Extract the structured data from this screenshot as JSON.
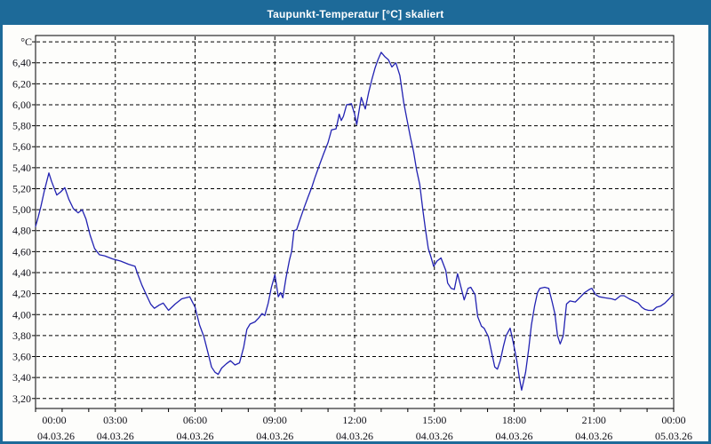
{
  "window": {
    "title": "Taupunkt-Temperatur [°C] skaliert",
    "title_bar_color": "#1d6a99",
    "border_color": "#1d6a99",
    "content_background": "#fdfdfb"
  },
  "chart_data": {
    "type": "line",
    "title": "Taupunkt-Temperatur [°C] skaliert",
    "y_unit_label": "°C",
    "grid": "dashed",
    "plot_background": "#fdfdfb",
    "line_color": "#2222b2",
    "grid_color": "#000000",
    "axis_color": "#000000",
    "xlim_hours": [
      0,
      24
    ],
    "ylim": [
      3.105,
      6.66
    ],
    "y_gridline_values": [
      3.2,
      3.4,
      3.6,
      3.8,
      4.0,
      4.2,
      4.4,
      4.6,
      4.8,
      5.0,
      5.2,
      5.4,
      5.6,
      5.8,
      6.0,
      6.2,
      6.4,
      6.6
    ],
    "y_ticks": [
      {
        "v": 6.4,
        "label": "6,40"
      },
      {
        "v": 6.2,
        "label": "6,20"
      },
      {
        "v": 6.0,
        "label": "6,00"
      },
      {
        "v": 5.8,
        "label": "5,80"
      },
      {
        "v": 5.6,
        "label": "5,60"
      },
      {
        "v": 5.4,
        "label": "5,40"
      },
      {
        "v": 5.2,
        "label": "5,20"
      },
      {
        "v": 5.0,
        "label": "5,00"
      },
      {
        "v": 4.8,
        "label": "4,80"
      },
      {
        "v": 4.6,
        "label": "4,60"
      },
      {
        "v": 4.4,
        "label": "4,40"
      },
      {
        "v": 4.2,
        "label": "4,20"
      },
      {
        "v": 4.0,
        "label": "4,00"
      },
      {
        "v": 3.8,
        "label": "3,80"
      },
      {
        "v": 3.6,
        "label": "3,60"
      },
      {
        "v": 3.4,
        "label": "3,40"
      },
      {
        "v": 3.2,
        "label": "3,20"
      }
    ],
    "x_major_ticks": [
      {
        "h": 0,
        "time": "00:00",
        "date": "04.03.26"
      },
      {
        "h": 3,
        "time": "03:00",
        "date": "04.03.26"
      },
      {
        "h": 6,
        "time": "06:00",
        "date": "04.03.26"
      },
      {
        "h": 9,
        "time": "09:00",
        "date": "04.03.26"
      },
      {
        "h": 12,
        "time": "12:00",
        "date": "04.03.26"
      },
      {
        "h": 15,
        "time": "15:00",
        "date": "04.03.26"
      },
      {
        "h": 18,
        "time": "18:00",
        "date": "04.03.26"
      },
      {
        "h": 21,
        "time": "21:00",
        "date": "04.03.26"
      },
      {
        "h": 24,
        "time": "00:00",
        "date": "05.03.26"
      }
    ],
    "x_minor_tick_step_hours": 1,
    "x_gridline_hours": [
      3,
      6,
      9,
      12,
      15,
      18,
      21
    ],
    "series": [
      {
        "name": "Taupunkt-Temperatur",
        "points": [
          [
            0.0,
            4.84
          ],
          [
            0.1,
            4.93
          ],
          [
            0.2,
            5.03
          ],
          [
            0.33,
            5.18
          ],
          [
            0.5,
            5.35
          ],
          [
            0.6,
            5.27
          ],
          [
            0.8,
            5.14
          ],
          [
            0.95,
            5.17
          ],
          [
            1.1,
            5.21
          ],
          [
            1.25,
            5.1
          ],
          [
            1.42,
            5.01
          ],
          [
            1.6,
            4.97
          ],
          [
            1.75,
            5.0
          ],
          [
            1.9,
            4.91
          ],
          [
            2.05,
            4.76
          ],
          [
            2.22,
            4.63
          ],
          [
            2.4,
            4.57
          ],
          [
            2.6,
            4.56
          ],
          [
            2.9,
            4.53
          ],
          [
            3.2,
            4.51
          ],
          [
            3.5,
            4.48
          ],
          [
            3.74,
            4.46
          ],
          [
            3.85,
            4.38
          ],
          [
            4.0,
            4.28
          ],
          [
            4.18,
            4.18
          ],
          [
            4.33,
            4.1
          ],
          [
            4.47,
            4.06
          ],
          [
            4.65,
            4.09
          ],
          [
            4.8,
            4.11
          ],
          [
            5.0,
            4.04
          ],
          [
            5.25,
            4.1
          ],
          [
            5.5,
            4.15
          ],
          [
            5.65,
            4.16
          ],
          [
            5.8,
            4.17
          ],
          [
            6.0,
            4.07
          ],
          [
            6.17,
            3.9
          ],
          [
            6.33,
            3.79
          ],
          [
            6.5,
            3.62
          ],
          [
            6.62,
            3.5
          ],
          [
            6.75,
            3.45
          ],
          [
            6.87,
            3.43
          ],
          [
            7.0,
            3.49
          ],
          [
            7.17,
            3.53
          ],
          [
            7.33,
            3.56
          ],
          [
            7.5,
            3.52
          ],
          [
            7.67,
            3.54
          ],
          [
            7.83,
            3.69
          ],
          [
            7.95,
            3.86
          ],
          [
            8.07,
            3.91
          ],
          [
            8.25,
            3.93
          ],
          [
            8.4,
            3.97
          ],
          [
            8.52,
            4.01
          ],
          [
            8.62,
            3.99
          ],
          [
            8.75,
            4.11
          ],
          [
            8.87,
            4.26
          ],
          [
            9.0,
            4.38
          ],
          [
            9.13,
            4.17
          ],
          [
            9.22,
            4.21
          ],
          [
            9.3,
            4.16
          ],
          [
            9.42,
            4.35
          ],
          [
            9.55,
            4.52
          ],
          [
            9.63,
            4.6
          ],
          [
            9.72,
            4.8
          ],
          [
            9.82,
            4.81
          ],
          [
            9.95,
            4.91
          ],
          [
            10.1,
            5.02
          ],
          [
            10.25,
            5.12
          ],
          [
            10.4,
            5.22
          ],
          [
            10.5,
            5.3
          ],
          [
            10.67,
            5.42
          ],
          [
            10.83,
            5.53
          ],
          [
            11.0,
            5.64
          ],
          [
            11.13,
            5.76
          ],
          [
            11.3,
            5.77
          ],
          [
            11.37,
            5.85
          ],
          [
            11.42,
            5.91
          ],
          [
            11.5,
            5.85
          ],
          [
            11.58,
            5.89
          ],
          [
            11.7,
            6.0
          ],
          [
            11.88,
            6.01
          ],
          [
            12.0,
            5.91
          ],
          [
            12.08,
            5.81
          ],
          [
            12.25,
            6.07
          ],
          [
            12.4,
            5.96
          ],
          [
            12.53,
            6.12
          ],
          [
            12.65,
            6.24
          ],
          [
            12.77,
            6.35
          ],
          [
            12.88,
            6.43
          ],
          [
            13.0,
            6.5
          ],
          [
            13.13,
            6.46
          ],
          [
            13.27,
            6.43
          ],
          [
            13.4,
            6.36
          ],
          [
            13.55,
            6.4
          ],
          [
            13.7,
            6.28
          ],
          [
            13.85,
            6.02
          ],
          [
            13.97,
            5.86
          ],
          [
            14.1,
            5.69
          ],
          [
            14.22,
            5.55
          ],
          [
            14.33,
            5.38
          ],
          [
            14.45,
            5.24
          ],
          [
            14.57,
            4.99
          ],
          [
            14.67,
            4.8
          ],
          [
            14.77,
            4.63
          ],
          [
            14.87,
            4.55
          ],
          [
            14.97,
            4.46
          ],
          [
            15.1,
            4.51
          ],
          [
            15.25,
            4.54
          ],
          [
            15.43,
            4.42
          ],
          [
            15.5,
            4.3
          ],
          [
            15.63,
            4.25
          ],
          [
            15.75,
            4.24
          ],
          [
            15.87,
            4.39
          ],
          [
            16.0,
            4.26
          ],
          [
            16.12,
            4.14
          ],
          [
            16.27,
            4.25
          ],
          [
            16.37,
            4.26
          ],
          [
            16.53,
            4.19
          ],
          [
            16.63,
            3.98
          ],
          [
            16.77,
            3.89
          ],
          [
            16.87,
            3.87
          ],
          [
            17.03,
            3.79
          ],
          [
            17.12,
            3.68
          ],
          [
            17.27,
            3.5
          ],
          [
            17.37,
            3.48
          ],
          [
            17.48,
            3.56
          ],
          [
            17.6,
            3.7
          ],
          [
            17.7,
            3.8
          ],
          [
            17.85,
            3.87
          ],
          [
            17.97,
            3.73
          ],
          [
            18.1,
            3.56
          ],
          [
            18.2,
            3.39
          ],
          [
            18.28,
            3.28
          ],
          [
            18.43,
            3.45
          ],
          [
            18.55,
            3.68
          ],
          [
            18.65,
            3.9
          ],
          [
            18.77,
            4.08
          ],
          [
            18.88,
            4.21
          ],
          [
            18.97,
            4.25
          ],
          [
            19.15,
            4.26
          ],
          [
            19.3,
            4.25
          ],
          [
            19.43,
            4.12
          ],
          [
            19.53,
            4.01
          ],
          [
            19.63,
            3.8
          ],
          [
            19.73,
            3.72
          ],
          [
            19.85,
            3.8
          ],
          [
            19.97,
            4.1
          ],
          [
            20.1,
            4.13
          ],
          [
            20.3,
            4.12
          ],
          [
            20.5,
            4.17
          ],
          [
            20.65,
            4.21
          ],
          [
            20.83,
            4.24
          ],
          [
            20.92,
            4.25
          ],
          [
            21.07,
            4.19
          ],
          [
            21.2,
            4.17
          ],
          [
            21.42,
            4.16
          ],
          [
            21.67,
            4.15
          ],
          [
            21.8,
            4.14
          ],
          [
            22.0,
            4.18
          ],
          [
            22.13,
            4.18
          ],
          [
            22.33,
            4.15
          ],
          [
            22.5,
            4.13
          ],
          [
            22.67,
            4.11
          ],
          [
            22.8,
            4.07
          ],
          [
            22.92,
            4.05
          ],
          [
            23.05,
            4.04
          ],
          [
            23.22,
            4.04
          ],
          [
            23.35,
            4.07
          ],
          [
            23.5,
            4.08
          ],
          [
            23.67,
            4.11
          ],
          [
            23.83,
            4.15
          ],
          [
            23.97,
            4.19
          ]
        ]
      }
    ]
  }
}
